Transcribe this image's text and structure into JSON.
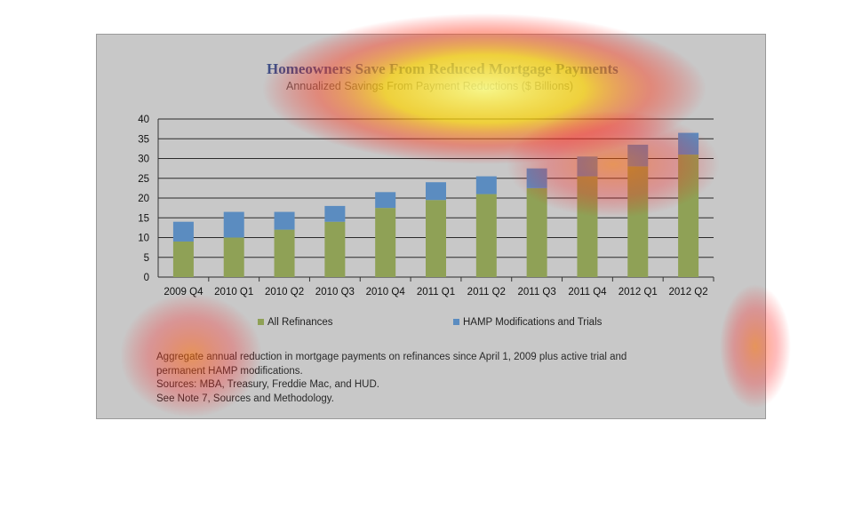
{
  "colors": {
    "frame_bg": "#c8c8c8",
    "refi": "#8fa156",
    "hamp": "#5b8cc0",
    "grid": "#2a2a2a",
    "title": "#3f4f86"
  },
  "heatmap_overlay": "attention heatmap (red/yellow) over title, top bars, legend-left, notes-left",
  "chart_data": {
    "type": "bar",
    "stacked": true,
    "title": "Homeowners Save From Reduced Mortgage Payments",
    "subtitle": "Annualized Savings From Payment Reductions ($ Billions)",
    "categories": [
      "2009 Q4",
      "2010 Q1",
      "2010 Q2",
      "2010 Q3",
      "2010 Q4",
      "2011 Q1",
      "2011 Q2",
      "2011 Q3",
      "2011 Q4",
      "2012 Q1",
      "2012 Q2"
    ],
    "series": [
      {
        "name": "All Refinances",
        "color": "#8fa156",
        "values": [
          9,
          10,
          12,
          14,
          17.5,
          19.5,
          21,
          22.5,
          25.5,
          28,
          31
        ]
      },
      {
        "name": "HAMP Modifications and Trials",
        "color": "#5b8cc0",
        "values": [
          5,
          6.5,
          4.5,
          4,
          4,
          4.5,
          4.5,
          5,
          5,
          5.5,
          5.5
        ]
      }
    ],
    "ylim": [
      0,
      40
    ],
    "yticks": [
      0,
      5,
      10,
      15,
      20,
      25,
      30,
      35,
      40
    ],
    "grid": true,
    "legend_position": "bottom"
  },
  "notes": [
    "Aggregate annual reduction in mortgage payments on refinances since April 1, 2009 plus active trial and",
    "permanent HAMP modifications.",
    "Sources:  MBA, Treasury, Freddie Mac, and HUD.",
    "See Note 7, Sources and Methodology."
  ]
}
